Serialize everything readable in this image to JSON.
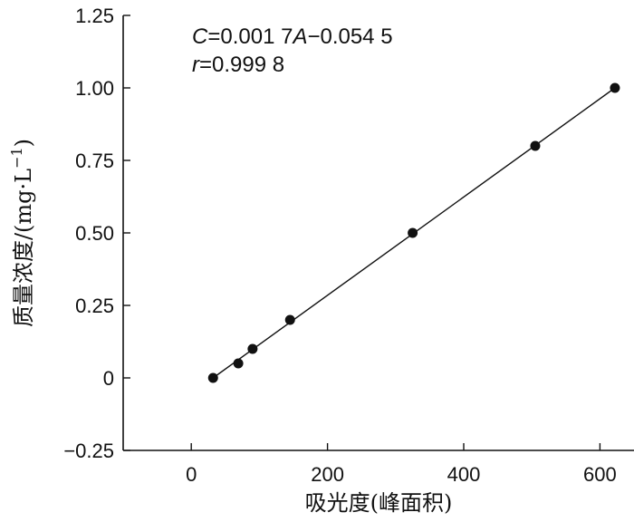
{
  "chart_data": {
    "type": "scatter",
    "xlabel": "吸光度(峰面积)",
    "ylabel_main": "质量浓度/(mg·L",
    "ylabel_sup": "−1",
    "ylabel_close": ")",
    "xlim": [
      -100,
      650
    ],
    "ylim": [
      -0.25,
      1.25
    ],
    "xticks": [
      0,
      200,
      400,
      600
    ],
    "xtick_labels": [
      "0",
      "200",
      "400",
      "600"
    ],
    "yticks": [
      -0.25,
      0,
      0.25,
      0.5,
      0.75,
      1.0,
      1.25
    ],
    "ytick_labels": [
      "−0.25",
      "0",
      "0.25",
      "0.50",
      "0.75",
      "1.00",
      "1.25"
    ],
    "points": [
      {
        "x": 32,
        "y": 0.0
      },
      {
        "x": 69,
        "y": 0.05
      },
      {
        "x": 90,
        "y": 0.1
      },
      {
        "x": 145,
        "y": 0.2
      },
      {
        "x": 325,
        "y": 0.5
      },
      {
        "x": 505,
        "y": 0.8
      },
      {
        "x": 622,
        "y": 1.0
      }
    ],
    "fit_line": {
      "x_start": 32,
      "y_start": 0.0,
      "x_end": 622,
      "y_end": 1.0
    },
    "annotation": {
      "eq_var": "C",
      "eq_mid": "=0.001 7",
      "eq_var2": "A",
      "eq_tail": "−0.054 5",
      "r_var": "r",
      "r_tail": "=0.999 8"
    },
    "grid": false,
    "legend": "none"
  },
  "colors": {
    "marker": "#111111",
    "line": "#111111",
    "axis": "#111111"
  }
}
